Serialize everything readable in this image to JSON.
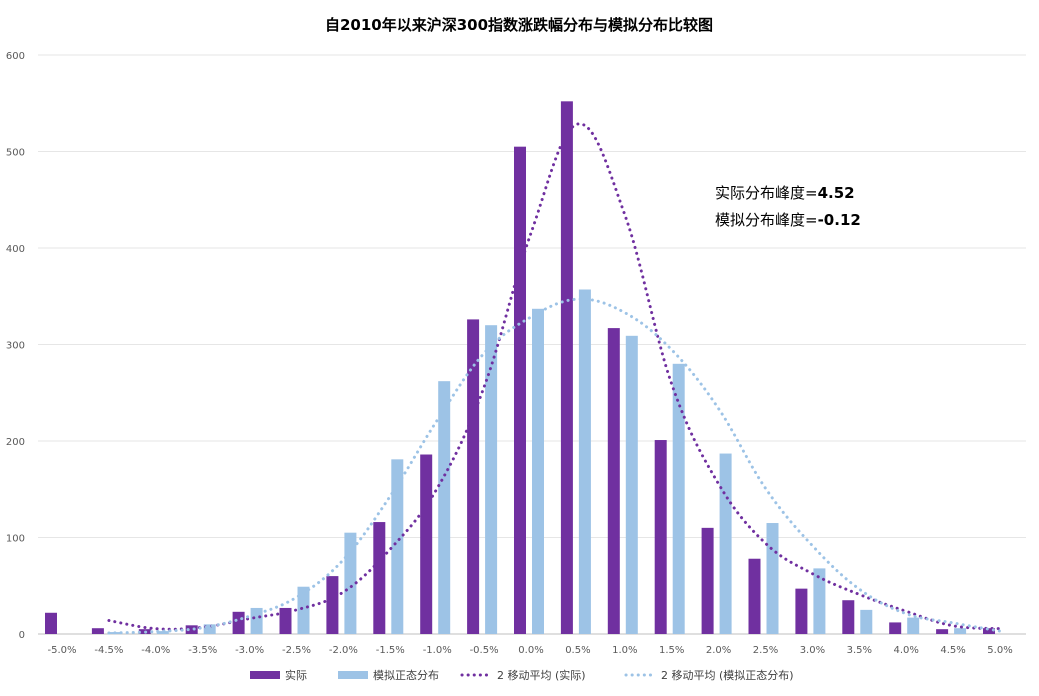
{
  "chart_data": {
    "type": "bar",
    "title": "自2010年以来沪深300指数涨跌幅分布与模拟分布比较图",
    "categories": [
      "-5.0%",
      "-4.5%",
      "-4.0%",
      "-3.5%",
      "-3.0%",
      "-2.5%",
      "-2.0%",
      "-1.5%",
      "-1.0%",
      "-0.5%",
      "0.0%",
      "0.5%",
      "1.0%",
      "1.5%",
      "2.0%",
      "2.5%",
      "3.0%",
      "3.5%",
      "4.0%",
      "4.5%",
      "5.0%"
    ],
    "series": [
      {
        "name": "实际",
        "type": "bar",
        "color": "#7030A0",
        "values": [
          22,
          6,
          5,
          9,
          23,
          27,
          60,
          116,
          186,
          326,
          505,
          552,
          317,
          201,
          110,
          78,
          47,
          35,
          12,
          5,
          6
        ]
      },
      {
        "name": "模拟正态分布",
        "type": "bar",
        "color": "#9DC3E6",
        "values": [
          0,
          2,
          3,
          10,
          27,
          49,
          105,
          181,
          262,
          320,
          337,
          357,
          309,
          280,
          187,
          115,
          68,
          25,
          17,
          6,
          0
        ]
      },
      {
        "name": "2 移动平均 (实际)",
        "type": "line",
        "style": "dotted",
        "color": "#7030A0",
        "values": [
          null,
          14,
          5.5,
          7,
          16,
          25,
          43.5,
          88,
          151,
          256,
          415.5,
          528.5,
          434.5,
          259,
          155.5,
          94,
          62.5,
          41,
          23.5,
          8.5,
          5.5
        ]
      },
      {
        "name": "2 移动平均 (模拟正态分布)",
        "type": "line",
        "style": "dotted",
        "color": "#9DC3E6",
        "values": [
          null,
          1,
          2.5,
          6.5,
          18.5,
          38,
          77,
          143,
          221.5,
          291,
          328.5,
          347,
          333,
          294.5,
          233.5,
          151,
          91.5,
          46.5,
          21,
          11.5,
          3
        ]
      }
    ],
    "ylim": [
      0,
      600
    ],
    "yticks": [
      0,
      100,
      200,
      300,
      400,
      500,
      600
    ],
    "grid": true,
    "legend_position": "bottom",
    "annotations": [
      {
        "prefix": "实际分布峰度=",
        "value": "4.52"
      },
      {
        "prefix": "模拟分布峰度=",
        "value": "-0.12"
      }
    ]
  }
}
